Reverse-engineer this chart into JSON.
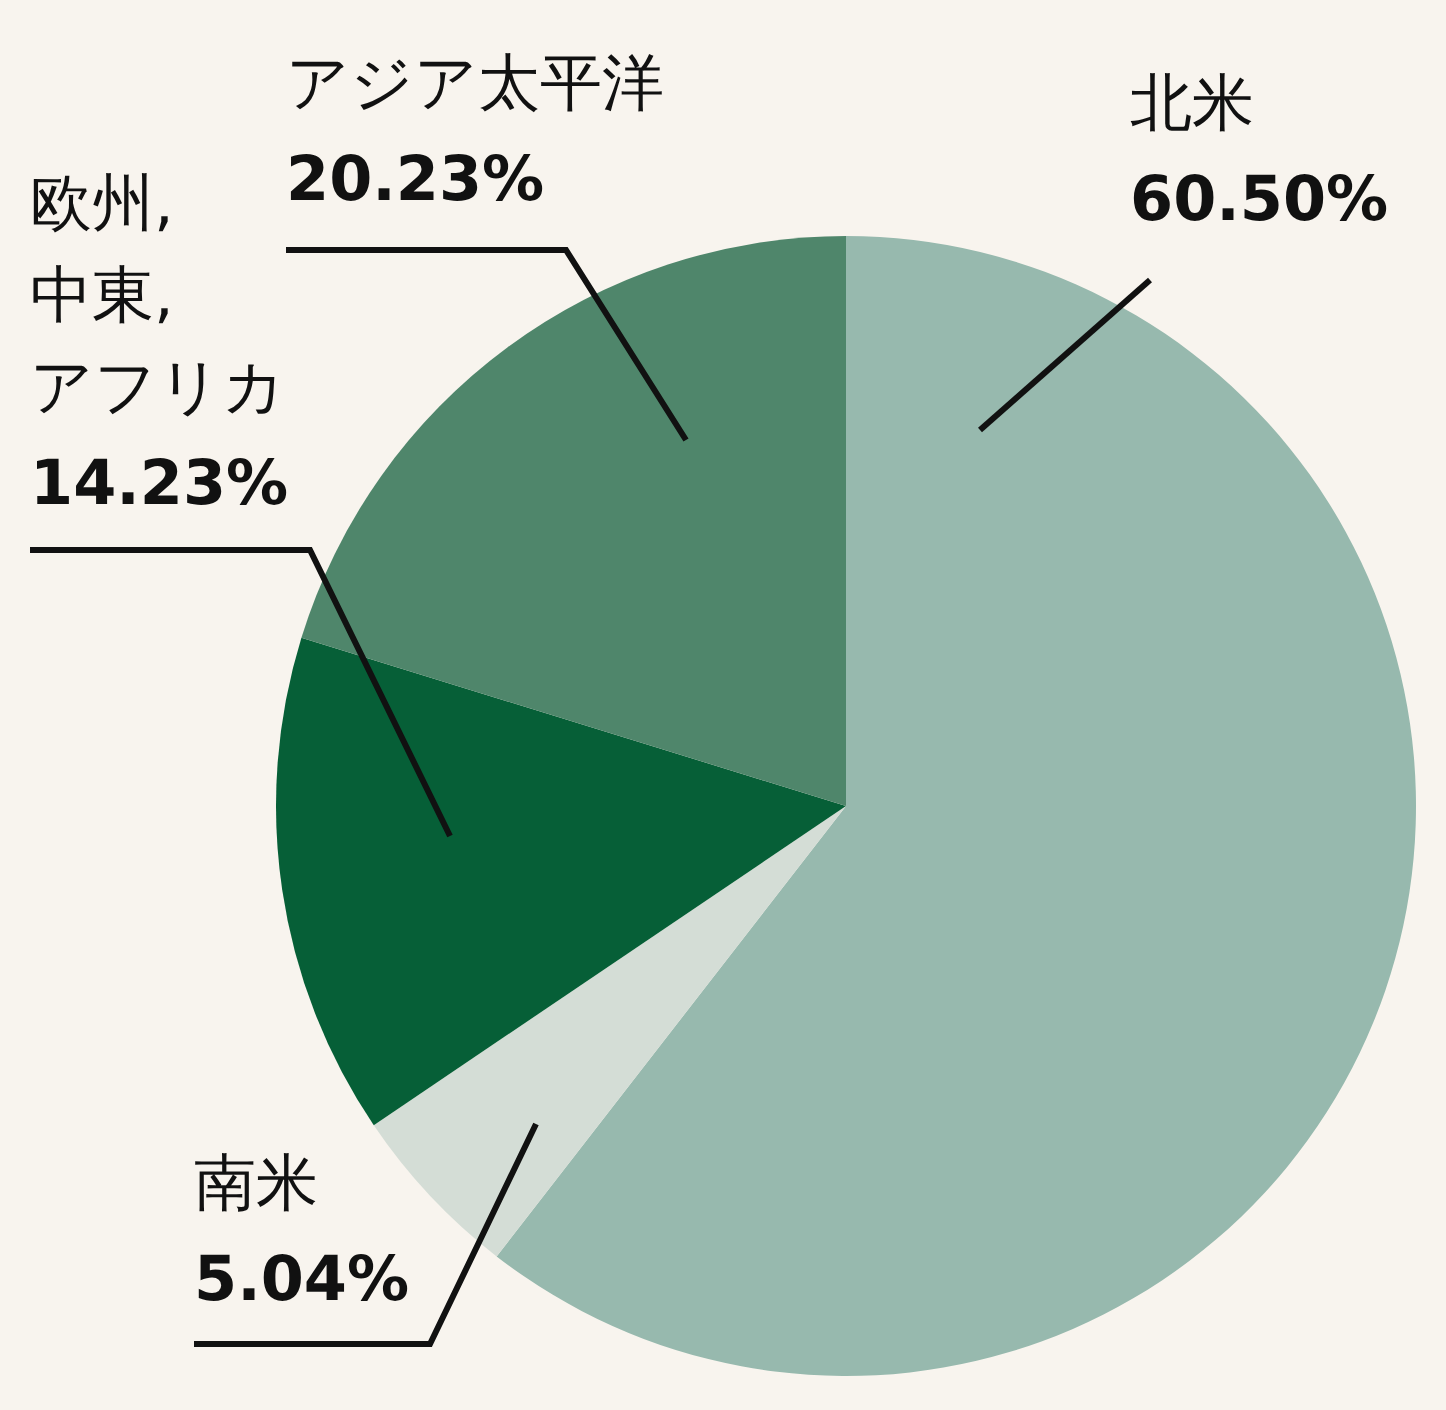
{
  "chart_data": {
    "type": "pie",
    "categories": [
      "北米",
      "南米",
      "欧州,\n中東,\nアフリカ",
      "アジア太平洋"
    ],
    "values": [
      60.5,
      5.04,
      14.23,
      20.23
    ],
    "value_labels": [
      "60.50%",
      "5.04%",
      "14.23%",
      "20.23%"
    ],
    "colors": [
      "#97b9ae",
      "#d4ddd6",
      "#065f37",
      "#4f866b"
    ]
  }
}
